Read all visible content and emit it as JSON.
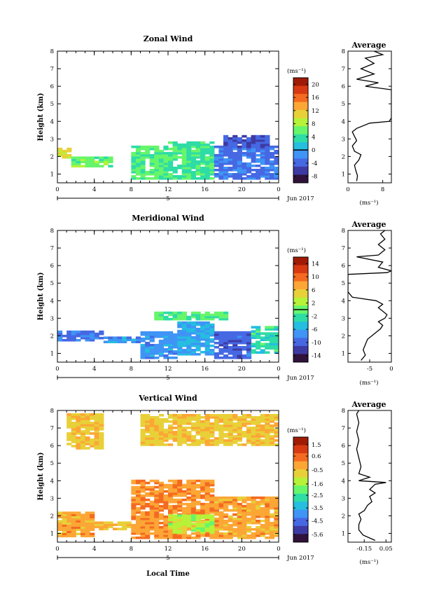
{
  "chart_data": [
    {
      "type": "heatmap",
      "title": "Zonal Wind",
      "ylabel": "Height (km)",
      "xlim": [
        0,
        24
      ],
      "ylim": [
        0.5,
        8
      ],
      "x_ticks": [
        "0",
        "4",
        "8",
        "12",
        "16",
        "20",
        "0"
      ],
      "y_ticks": [
        "1",
        "2",
        "3",
        "4",
        "5",
        "6",
        "7",
        "8"
      ],
      "date_label": "5",
      "month_label": "Jun 2017",
      "colorbar": {
        "unit": "(ms⁻¹)",
        "range": [
          -10,
          22
        ],
        "ticks": [
          "20",
          "16",
          "12",
          "8",
          "4",
          "0",
          "-4",
          "-8"
        ],
        "zero_line": 0
      },
      "regions": [
        {
          "x": [
            0,
            1.5
          ],
          "y": [
            1.9,
            2.4
          ],
          "value": 10
        },
        {
          "x": [
            1.5,
            6
          ],
          "y": [
            1.4,
            2.0
          ],
          "value": 6
        },
        {
          "x": [
            8,
            12
          ],
          "y": [
            0.7,
            2.6
          ],
          "value": 5
        },
        {
          "x": [
            12,
            17
          ],
          "y": [
            0.7,
            2.8
          ],
          "value": 4
        },
        {
          "x": [
            17,
            24
          ],
          "y": [
            0.7,
            2.6
          ],
          "value": -4
        },
        {
          "x": [
            18,
            23
          ],
          "y": [
            2.5,
            3.2
          ],
          "value": -6
        }
      ],
      "profile": {
        "title": "Average",
        "xlabel": "(ms⁻¹)",
        "xlim": [
          0,
          10
        ],
        "x_ticks": [
          "0",
          "8"
        ],
        "y_ticks": [
          "1",
          "2",
          "3",
          "4",
          "5",
          "6",
          "7",
          "8"
        ],
        "points": [
          [
            2.0,
            0.6
          ],
          [
            2.2,
            0.9
          ],
          [
            1.8,
            1.2
          ],
          [
            1.5,
            1.5
          ],
          [
            2.5,
            1.8
          ],
          [
            3.0,
            2.1
          ],
          [
            1.5,
            2.3
          ],
          [
            1.0,
            2.6
          ],
          [
            2.0,
            2.9
          ],
          [
            1.6,
            3.1
          ],
          [
            1.0,
            3.4
          ],
          [
            2.0,
            3.6
          ],
          [
            5.0,
            3.9
          ],
          [
            9.5,
            4.0
          ],
          [
            10.0,
            4.2
          ],
          [
            10.0,
            5.8
          ],
          [
            4.0,
            6.0
          ],
          [
            7.0,
            6.2
          ],
          [
            2.0,
            6.4
          ],
          [
            6.0,
            6.7
          ],
          [
            3.0,
            7.0
          ],
          [
            6.0,
            7.3
          ],
          [
            4.0,
            7.6
          ],
          [
            8.0,
            7.8
          ],
          [
            6.0,
            8.0
          ]
        ]
      }
    },
    {
      "type": "heatmap",
      "title": "Meridional Wind",
      "ylabel": "Height (km)",
      "xlim": [
        0,
        24
      ],
      "ylim": [
        0.5,
        8
      ],
      "x_ticks": [
        "0",
        "4",
        "8",
        "12",
        "16",
        "20",
        "0"
      ],
      "y_ticks": [
        "1",
        "2",
        "3",
        "4",
        "5",
        "6",
        "7",
        "8"
      ],
      "date_label": "5",
      "month_label": "Jun 2017",
      "colorbar": {
        "unit": "(ms⁻¹)",
        "range": [
          -16,
          16
        ],
        "ticks": [
          "14",
          "10",
          "6",
          "2",
          "-2",
          "-6",
          "-10",
          "-14"
        ],
        "zero_line": 0
      },
      "regions": [
        {
          "x": [
            0,
            5
          ],
          "y": [
            1.7,
            2.2
          ],
          "value": -10
        },
        {
          "x": [
            5,
            9
          ],
          "y": [
            1.6,
            1.9
          ],
          "value": -8
        },
        {
          "x": [
            9,
            13
          ],
          "y": [
            0.7,
            2.2
          ],
          "value": -8
        },
        {
          "x": [
            13,
            17
          ],
          "y": [
            0.9,
            2.8
          ],
          "value": -7
        },
        {
          "x": [
            17,
            21
          ],
          "y": [
            0.7,
            2.2
          ],
          "value": -11
        },
        {
          "x": [
            21,
            24
          ],
          "y": [
            1.0,
            2.5
          ],
          "value": -3
        },
        {
          "x": [
            10.5,
            18.5
          ],
          "y": [
            2.9,
            3.3
          ],
          "value": -1
        }
      ],
      "profile": {
        "title": "Average",
        "xlabel": "(ms⁻¹)",
        "xlim": [
          -10,
          0
        ],
        "x_ticks": [
          "-5",
          "0"
        ],
        "y_ticks": [
          "1",
          "2",
          "3",
          "4",
          "5",
          "6",
          "7",
          "8"
        ],
        "points": [
          [
            -7.0,
            0.6
          ],
          [
            -6.0,
            0.9
          ],
          [
            -6.5,
            1.2
          ],
          [
            -6.0,
            1.5
          ],
          [
            -5.5,
            1.8
          ],
          [
            -4.5,
            2.0
          ],
          [
            -3.5,
            2.2
          ],
          [
            -2.5,
            2.4
          ],
          [
            -2.0,
            2.6
          ],
          [
            -3.0,
            2.8
          ],
          [
            -1.5,
            3.0
          ],
          [
            -1.0,
            3.2
          ],
          [
            -2.0,
            3.4
          ],
          [
            -3.0,
            3.6
          ],
          [
            -2.0,
            3.8
          ],
          [
            -3.5,
            4.0
          ],
          [
            -9.0,
            4.2
          ],
          [
            -10.0,
            4.5
          ],
          [
            -10.0,
            5.5
          ],
          [
            -1.0,
            5.6
          ],
          [
            0.0,
            5.7
          ],
          [
            -3.0,
            5.9
          ],
          [
            -2.0,
            6.2
          ],
          [
            -8.0,
            6.5
          ],
          [
            -3.0,
            6.6
          ],
          [
            -1.5,
            6.9
          ],
          [
            -3.0,
            7.2
          ],
          [
            -1.5,
            7.5
          ],
          [
            -2.5,
            7.8
          ],
          [
            -1.5,
            8.0
          ]
        ]
      }
    },
    {
      "type": "heatmap",
      "title": "Vertical Wind",
      "xlabel": "Local Time",
      "ylabel": "Height (km)",
      "xlim": [
        0,
        24
      ],
      "ylim": [
        0.5,
        8
      ],
      "x_ticks": [
        "0",
        "4",
        "8",
        "12",
        "16",
        "20",
        "0"
      ],
      "y_ticks": [
        "1",
        "2",
        "3",
        "4",
        "5",
        "6",
        "7",
        "8"
      ],
      "date_label": "5",
      "month_label": "Jun 2017",
      "colorbar": {
        "unit": "(ms⁻¹)",
        "range": [
          -6.2,
          2.1
        ],
        "ticks": [
          "1.5",
          "0.6",
          "-0.5",
          "-1.6",
          "-2.5",
          "-3.5",
          "-4.5",
          "-5.6"
        ],
        "zero_line": null
      },
      "regions": [
        {
          "x": [
            0,
            4
          ],
          "y": [
            0.8,
            2.2
          ],
          "value": 0.0
        },
        {
          "x": [
            4,
            8
          ],
          "y": [
            1.2,
            1.6
          ],
          "value": -0.4
        },
        {
          "x": [
            8,
            12
          ],
          "y": [
            0.7,
            4.0
          ],
          "value": 0.3
        },
        {
          "x": [
            12,
            17
          ],
          "y": [
            0.7,
            4.0
          ],
          "value": 0.2
        },
        {
          "x": [
            17,
            24
          ],
          "y": [
            0.7,
            3.1
          ],
          "value": 0.0
        },
        {
          "x": [
            12,
            17
          ],
          "y": [
            1.0,
            2.0
          ],
          "value": -1.4
        },
        {
          "x": [
            1,
            5
          ],
          "y": [
            5.8,
            7.8
          ],
          "value": -0.5
        },
        {
          "x": [
            9,
            24
          ],
          "y": [
            6.0,
            7.8
          ],
          "value": -0.5
        }
      ],
      "profile": {
        "title": "Average",
        "xlabel": "(ms⁻¹)",
        "xlim": [
          -0.3,
          0.1
        ],
        "x_ticks": [
          "-0.15",
          "0.05"
        ],
        "y_ticks": [
          "1",
          "2",
          "3",
          "4",
          "5",
          "6",
          "7",
          "8"
        ],
        "points": [
          [
            -0.05,
            0.6
          ],
          [
            -0.16,
            0.9
          ],
          [
            -0.2,
            1.2
          ],
          [
            -0.2,
            1.5
          ],
          [
            -0.18,
            1.8
          ],
          [
            -0.2,
            2.1
          ],
          [
            -0.15,
            2.3
          ],
          [
            -0.12,
            2.6
          ],
          [
            -0.08,
            2.8
          ],
          [
            -0.1,
            3.1
          ],
          [
            -0.05,
            3.3
          ],
          [
            -0.1,
            3.5
          ],
          [
            -0.05,
            3.8
          ],
          [
            0.05,
            3.9
          ],
          [
            -0.2,
            4.0
          ],
          [
            -0.1,
            4.2
          ],
          [
            -0.2,
            4.4
          ],
          [
            -0.18,
            4.8
          ],
          [
            -0.2,
            5.3
          ],
          [
            -0.22,
            5.8
          ],
          [
            -0.2,
            6.3
          ],
          [
            -0.22,
            6.8
          ],
          [
            -0.2,
            7.3
          ],
          [
            -0.22,
            7.8
          ],
          [
            -0.2,
            8.0
          ]
        ]
      }
    }
  ]
}
